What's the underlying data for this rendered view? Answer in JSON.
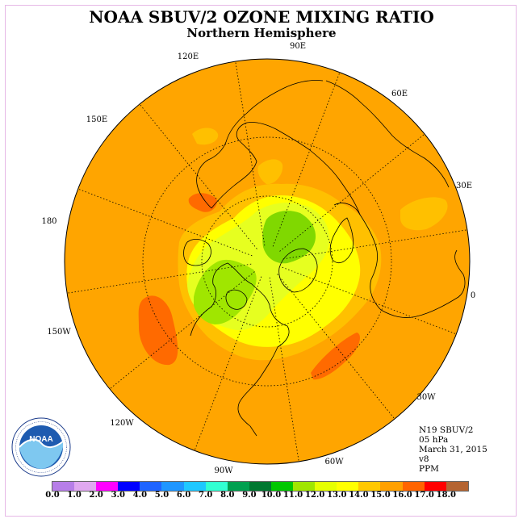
{
  "title": "NOAA SBUV/2 OZONE MIXING RATIO",
  "subtitle": "Northern Hemisphere",
  "longitude_labels": [
    "90E",
    "60E",
    "30E",
    "0",
    "30W",
    "60W",
    "90W",
    "120W",
    "150W",
    "180",
    "150E",
    "120E"
  ],
  "info": {
    "satellite": "N19 SBUV/2",
    "level": "05 hPa",
    "date": "March 31, 2015",
    "version": "v8",
    "units": "PPM"
  },
  "colorbar": {
    "ticks": [
      "0.0",
      "1.0",
      "2.0",
      "3.0",
      "4.0",
      "5.0",
      "6.0",
      "7.0",
      "8.0",
      "9.0",
      "10.0",
      "11.0",
      "12.0",
      "13.0",
      "14.0",
      "15.0",
      "16.0",
      "17.0",
      "18.0"
    ],
    "colors": [
      "#b77ee8",
      "#e0a8f0",
      "#ff00ff",
      "#0000ff",
      "#1e64ff",
      "#1e96ff",
      "#1ec8ff",
      "#32ffd2",
      "#00a050",
      "#007830",
      "#00c800",
      "#a0e600",
      "#e6ff00",
      "#ffff00",
      "#ffc800",
      "#ffa000",
      "#ff6400",
      "#ff0000",
      "#b46432"
    ]
  },
  "logo_text": "NOAA",
  "logo_ring_text": "NATIONAL OCEANIC AND ATMOSPHERIC ADMINISTRATION · U.S. DEPARTMENT OF COMMERCE",
  "map_colors": {
    "background": "#ffa500",
    "level_14": "#ffc000",
    "level_13": "#ffff00",
    "level_12": "#e6ff20",
    "level_11": "#a0e600",
    "level_10": "#80d800",
    "level_16": "#ff6a00"
  }
}
